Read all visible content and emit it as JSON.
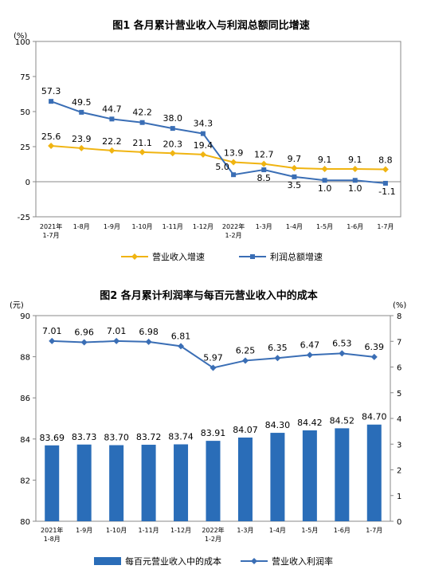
{
  "charts": [
    {
      "title": "图1 各月累计营业收入与利润总额同比增速",
      "unit_left": "(%)",
      "type": "line",
      "categories": [
        [
          "2021年",
          "1-7月"
        ],
        [
          "1-8月"
        ],
        [
          "1-9月"
        ],
        [
          "1-10月"
        ],
        [
          "1-11月"
        ],
        [
          "1-12月"
        ],
        [
          "2022年",
          "1-2月"
        ],
        [
          "1-3月"
        ],
        [
          "1-4月"
        ],
        [
          "1-5月"
        ],
        [
          "1-6月"
        ],
        [
          "1-7月"
        ]
      ],
      "ylim": [
        -25,
        100
      ],
      "yticks": [
        "-25",
        "0",
        "25",
        "50",
        "75",
        "100"
      ],
      "series": [
        {
          "name": "营业收入增速",
          "color": "#f0b411",
          "marker": "diamond",
          "values": [
            25.6,
            23.9,
            22.2,
            21.1,
            20.3,
            19.4,
            13.9,
            12.7,
            9.7,
            9.1,
            9.1,
            8.8
          ],
          "labels": [
            "25.6",
            "23.9",
            "22.2",
            "21.1",
            "20.3",
            "19.4",
            "13.9",
            "12.7",
            "9.7",
            "9.1",
            "9.1",
            "8.8"
          ]
        },
        {
          "name": "利润总额增速",
          "color": "#3a6eb5",
          "marker": "square",
          "values": [
            57.3,
            49.5,
            44.7,
            42.2,
            38.0,
            34.3,
            5.0,
            8.5,
            3.5,
            1.0,
            1.0,
            -1.1
          ],
          "labels": [
            "57.3",
            "49.5",
            "44.7",
            "42.2",
            "38.0",
            "34.3",
            "5.0",
            "8.5",
            "3.5",
            "1.0",
            "1.0",
            "-1.1"
          ]
        }
      ]
    },
    {
      "title": "图2 各月累计利润率与每百元营业收入中的成本",
      "unit_left": "(元)",
      "unit_right": "(%)",
      "type": "bar+line",
      "categories": [
        [
          "2021年",
          "1-8月"
        ],
        [
          "1-9月"
        ],
        [
          "1-10月"
        ],
        [
          "1-11月"
        ],
        [
          "1-12月"
        ],
        [
          "2022年",
          "1-2月"
        ],
        [
          "1-3月"
        ],
        [
          "1-4月"
        ],
        [
          "1-5月"
        ],
        [
          "1-6月"
        ],
        [
          "1-7月"
        ]
      ],
      "ylim_left": [
        80,
        90
      ],
      "yticks_left": [
        "80",
        "82",
        "84",
        "86",
        "88",
        "90"
      ],
      "ylim_right": [
        0,
        8
      ],
      "yticks_right": [
        "0",
        "1",
        "2",
        "3",
        "4",
        "5",
        "6",
        "7",
        "8"
      ],
      "bars": {
        "name": "每百元营业收入中的成本",
        "color": "#2a6db8",
        "values": [
          83.69,
          83.73,
          83.7,
          83.72,
          83.74,
          83.91,
          84.07,
          84.3,
          84.42,
          84.52,
          84.7
        ],
        "labels": [
          "83.69",
          "83.73",
          "83.70",
          "83.72",
          "83.74",
          "83.91",
          "84.07",
          "84.30",
          "84.42",
          "84.52",
          "84.70"
        ]
      },
      "line": {
        "name": "营业收入利润率",
        "color": "#3a6eb5",
        "values": [
          7.01,
          6.96,
          7.01,
          6.98,
          6.81,
          5.97,
          6.25,
          6.35,
          6.47,
          6.53,
          6.39
        ],
        "labels": [
          "7.01",
          "6.96",
          "7.01",
          "6.98",
          "6.81",
          "5.97",
          "6.25",
          "6.35",
          "6.47",
          "6.53",
          "6.39"
        ]
      }
    }
  ]
}
